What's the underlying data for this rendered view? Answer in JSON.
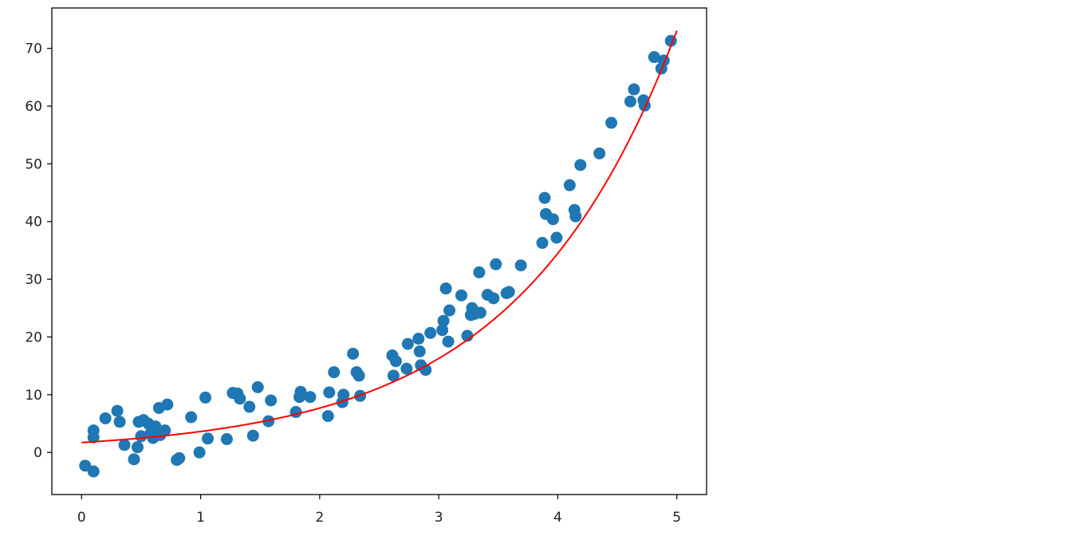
{
  "chart_data": {
    "type": "scatter",
    "title": "",
    "xlabel": "",
    "ylabel": "",
    "xlim": [
      -0.25,
      5.25
    ],
    "ylim": [
      -7.3,
      77
    ],
    "xticks": [
      0,
      1,
      2,
      3,
      4,
      5
    ],
    "yticks": [
      0,
      10,
      20,
      30,
      40,
      50,
      60,
      70
    ],
    "grid": false,
    "legend": "none",
    "colors": {
      "points": "#1f77b4",
      "fit": "#ff0000",
      "axes": "#000000"
    },
    "series": [
      {
        "kind": "scatter",
        "x": [
          0.03,
          0.1,
          0.1,
          0.1,
          0.2,
          0.3,
          0.32,
          0.36,
          0.44,
          0.47,
          0.48,
          0.5,
          0.52,
          0.56,
          0.58,
          0.6,
          0.62,
          0.65,
          0.66,
          0.7,
          0.72,
          0.8,
          0.82,
          0.92,
          0.99,
          1.04,
          1.06,
          1.22,
          1.27,
          1.31,
          1.33,
          1.41,
          1.44,
          1.48,
          1.57,
          1.59,
          1.8,
          1.83,
          1.84,
          1.92,
          2.07,
          2.08,
          2.12,
          2.19,
          2.2,
          2.28,
          2.31,
          2.33,
          2.34,
          2.61,
          2.62,
          2.64,
          2.73,
          2.74,
          2.83,
          2.84,
          2.85,
          2.89,
          2.93,
          3.03,
          3.04,
          3.06,
          3.08,
          3.09,
          3.19,
          3.24,
          3.27,
          3.28,
          3.3,
          3.34,
          3.35,
          3.41,
          3.46,
          3.48,
          3.57,
          3.59,
          3.69,
          3.87,
          3.89,
          3.9,
          3.96,
          3.99,
          4.1,
          4.14,
          4.15,
          4.19,
          4.35,
          4.45,
          4.61,
          4.64,
          4.72,
          4.73,
          4.81,
          4.87,
          4.89,
          4.95
        ],
        "y": [
          -2.3,
          -3.3,
          3.8,
          2.6,
          5.9,
          7.2,
          5.3,
          1.3,
          -1.2,
          0.9,
          5.3,
          2.8,
          5.6,
          5.0,
          3.3,
          2.5,
          4.5,
          7.7,
          3.0,
          3.8,
          8.3,
          -1.3,
          -1.0,
          6.1,
          0.0,
          9.5,
          2.4,
          2.3,
          10.3,
          10.2,
          9.3,
          7.9,
          2.9,
          11.3,
          5.4,
          9.0,
          7.0,
          9.6,
          10.5,
          9.6,
          6.3,
          10.4,
          13.9,
          8.7,
          10.0,
          17.1,
          13.9,
          13.3,
          9.8,
          16.8,
          13.3,
          15.8,
          14.5,
          18.8,
          19.7,
          17.5,
          15.1,
          14.3,
          20.7,
          21.2,
          22.8,
          28.4,
          19.2,
          24.6,
          27.2,
          20.2,
          23.8,
          25.0,
          24.0,
          31.2,
          24.2,
          27.3,
          26.7,
          32.6,
          27.6,
          27.8,
          32.4,
          36.3,
          44.1,
          41.3,
          40.4,
          37.2,
          46.3,
          42.0,
          40.9,
          49.8,
          51.8,
          57.1,
          60.8,
          62.9,
          61.0,
          60.1,
          68.5,
          66.5,
          67.9,
          71.3
        ]
      },
      {
        "kind": "line",
        "function": "y = 1.71 * exp(0.751 * x)",
        "x_range": [
          0,
          5
        ]
      }
    ]
  }
}
